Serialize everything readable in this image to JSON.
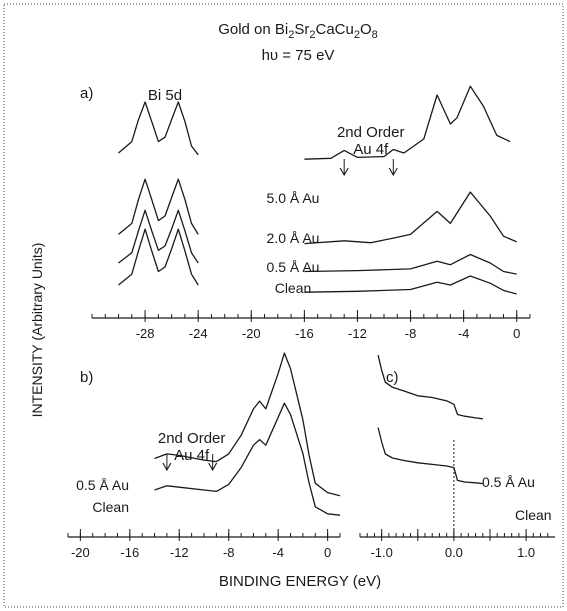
{
  "title": {
    "line1_prefix": "Gold on Bi",
    "sub1": "2",
    "mid1": "Sr",
    "sub2": "2",
    "mid2": "CaCu",
    "sub3": "2",
    "mid3": "O",
    "sub4": "8",
    "line2": "hυ = 75 eV"
  },
  "ylabel": "INTENSITY (Arbitrary Units)",
  "xlabel": "BINDING ENERGY (eV)",
  "chart_data": [
    {
      "panel": "a)",
      "type": "line",
      "xlim": [
        -32,
        1
      ],
      "xticks": [
        -28,
        -24,
        -20,
        -16,
        -12,
        -8,
        -4,
        0
      ],
      "xtick_labels": [
        "-28",
        "-24",
        "-20",
        "-16",
        "-12",
        "-8",
        "-4",
        "0"
      ],
      "axis_break": [
        -23.5,
        -17.5
      ],
      "annotations": [
        {
          "text": "Bi 5d",
          "x": -26.5
        },
        {
          "text": "2nd Order",
          "x": -11
        },
        {
          "text": "Au 4f",
          "x": -11
        }
      ],
      "arrows_x": [
        -13,
        -9.3
      ],
      "peaks": {
        "Bi 5d": [
          -28,
          -25.5
        ],
        "valence": [
          -6,
          -3.5
        ]
      },
      "series": [
        {
          "name": "5.0 Å Au",
          "x": [
            -30,
            -29,
            -28.5,
            -28,
            -27.5,
            -27,
            -26.5,
            -26,
            -25.5,
            -25,
            -24.5,
            -24,
            -16,
            -14,
            -13,
            -12,
            -10,
            -9.3,
            -8.5,
            -7,
            -6,
            -5,
            -4.5,
            -3.5,
            -2.5,
            -1.5,
            -0.5
          ],
          "y": [
            0.42,
            0.55,
            0.8,
            1.0,
            0.78,
            0.55,
            0.6,
            0.8,
            1.0,
            0.78,
            0.5,
            0.4,
            0.35,
            0.36,
            0.45,
            0.37,
            0.38,
            0.46,
            0.42,
            0.58,
            1.08,
            0.75,
            0.82,
            1.18,
            0.95,
            0.62,
            0.55
          ]
        },
        {
          "name": "2.0 Å Au",
          "x": [
            -30,
            -29,
            -28.5,
            -28,
            -27.5,
            -27,
            -26.5,
            -26,
            -25.5,
            -25,
            -24.5,
            -24,
            -16,
            -13,
            -11,
            -9.3,
            -8,
            -6,
            -5,
            -3.5,
            -2,
            -1,
            0
          ],
          "y": [
            0.3,
            0.42,
            0.68,
            0.9,
            0.68,
            0.45,
            0.5,
            0.7,
            0.9,
            0.68,
            0.42,
            0.3,
            0.2,
            0.23,
            0.21,
            0.26,
            0.3,
            0.55,
            0.42,
            0.76,
            0.5,
            0.28,
            0.22
          ]
        },
        {
          "name": "0.5 Å Au",
          "x": [
            -30,
            -29,
            -28.5,
            -28,
            -27.5,
            -27,
            -26.5,
            -26,
            -25.5,
            -25,
            -24.5,
            -24,
            -16,
            -12,
            -8,
            -6,
            -5,
            -3.5,
            -2,
            -1,
            0
          ],
          "y": [
            0.2,
            0.32,
            0.58,
            0.82,
            0.58,
            0.35,
            0.4,
            0.6,
            0.82,
            0.58,
            0.32,
            0.2,
            0.1,
            0.11,
            0.13,
            0.22,
            0.18,
            0.3,
            0.2,
            0.1,
            0.07
          ]
        },
        {
          "name": "Clean",
          "x": [
            -30,
            -29,
            -28.5,
            -28,
            -27.5,
            -27,
            -26.5,
            -26,
            -25.5,
            -25,
            -24.5,
            -24,
            -16,
            -12,
            -8,
            -6,
            -5,
            -3.5,
            -2,
            -1,
            0
          ],
          "y": [
            0.1,
            0.22,
            0.48,
            0.72,
            0.48,
            0.25,
            0.3,
            0.5,
            0.72,
            0.48,
            0.22,
            0.1,
            0.02,
            0.03,
            0.05,
            0.13,
            0.1,
            0.2,
            0.12,
            0.04,
            0.0
          ]
        }
      ]
    },
    {
      "panel": "b)",
      "type": "line",
      "xlim": [
        -21,
        1
      ],
      "xticks": [
        -20,
        -16,
        -12,
        -8,
        -4,
        0
      ],
      "xtick_labels": [
        "-20",
        "-16",
        "-12",
        "-8",
        "-4",
        "0"
      ],
      "annotations": [
        {
          "text": "2nd Order",
          "x": -11
        },
        {
          "text": "Au 4f",
          "x": -11
        }
      ],
      "arrows_x": [
        -13,
        -9.3
      ],
      "series": [
        {
          "name": "0.5 Å Au",
          "x": [
            -14,
            -13,
            -12,
            -10,
            -9,
            -8,
            -7,
            -6,
            -5.5,
            -5,
            -4,
            -3.5,
            -3,
            -2,
            -1.5,
            -1,
            0,
            1
          ],
          "y": [
            0.3,
            0.33,
            0.32,
            0.29,
            0.28,
            0.33,
            0.45,
            0.62,
            0.67,
            0.62,
            0.85,
            0.98,
            0.88,
            0.55,
            0.32,
            0.14,
            0.08,
            0.06
          ]
        },
        {
          "name": "Clean",
          "x": [
            -14,
            -13,
            -12,
            -10,
            -9,
            -8,
            -7,
            -6,
            -5.5,
            -5,
            -4,
            -3.5,
            -3,
            -2,
            -1.5,
            -1,
            0,
            1
          ],
          "y": [
            0.2,
            0.23,
            0.22,
            0.2,
            0.19,
            0.24,
            0.36,
            0.52,
            0.56,
            0.52,
            0.72,
            0.82,
            0.74,
            0.46,
            0.25,
            0.08,
            0.03,
            0.02
          ]
        }
      ]
    },
    {
      "panel": "c)",
      "type": "line",
      "xlim": [
        -1.3,
        1.4
      ],
      "xticks": [
        -1.0,
        -0.5,
        0.0,
        0.5,
        1.0
      ],
      "xtick_labels": [
        "-1.0",
        "",
        "0.0",
        "",
        "1.0"
      ],
      "series": [
        {
          "name": "0.5 Å Au",
          "x": [
            -1.05,
            -1.0,
            -0.95,
            -0.85,
            -0.7,
            -0.5,
            -0.3,
            -0.1,
            0.0,
            0.05,
            0.15,
            0.3,
            0.4
          ],
          "y": [
            1.0,
            0.82,
            0.68,
            0.62,
            0.58,
            0.52,
            0.5,
            0.46,
            0.42,
            0.3,
            0.28,
            0.26,
            0.25
          ]
        },
        {
          "name": "Clean",
          "x": [
            -1.05,
            -1.0,
            -0.95,
            -0.85,
            -0.7,
            -0.5,
            -0.3,
            -0.1,
            0.0,
            0.05,
            0.15,
            0.3,
            0.4
          ],
          "y": [
            0.78,
            0.6,
            0.45,
            0.4,
            0.37,
            0.34,
            0.32,
            0.3,
            0.28,
            0.12,
            0.1,
            0.09,
            0.08
          ]
        }
      ]
    }
  ]
}
